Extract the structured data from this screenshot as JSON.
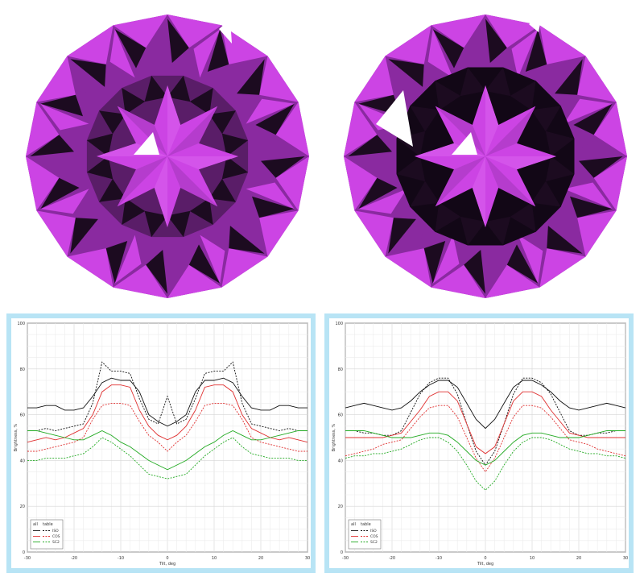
{
  "colors": {
    "gem_light": "#cc44e4",
    "gem_mid": "#8a2aa0",
    "gem_dark": "#1c0b20",
    "gem_darkest": "#120716",
    "panel_border": "#b8e4f5",
    "series_black": "#111111",
    "series_red": "#e03030",
    "series_green": "#22aa22",
    "grid": "#d6d6d6"
  },
  "gems": [
    {
      "icon": "diamond-render-left-icon"
    },
    {
      "icon": "diamond-render-right-icon"
    }
  ],
  "legend_labels": {
    "header_a": "all",
    "header_b": "table",
    "iso": "ISO",
    "cos": "COS",
    "sc2": "SC2"
  },
  "chart_data": [
    {
      "type": "line",
      "xlabel": "Tilt, deg",
      "ylabel": "Brightness, %",
      "xlim": [
        -30,
        30
      ],
      "ylim": [
        0,
        100
      ],
      "xticks": [
        -30,
        -20,
        -10,
        0,
        10,
        20,
        30
      ],
      "yticks": [
        0,
        20,
        40,
        60,
        80,
        100
      ],
      "grid": true,
      "legend": {
        "position": "bottom-left",
        "headers": [
          "all",
          "table"
        ],
        "entries": [
          "ISO",
          "COS",
          "SC2"
        ]
      },
      "x": [
        -30,
        -28,
        -26,
        -24,
        -22,
        -20,
        -18,
        -16,
        -14,
        -12,
        -10,
        -8,
        -6,
        -4,
        -2,
        0,
        2,
        4,
        6,
        8,
        10,
        12,
        14,
        16,
        18,
        20,
        22,
        24,
        26,
        28,
        30
      ],
      "series": [
        {
          "name": "ISO",
          "style": "all",
          "color": "#111111",
          "values": [
            63,
            63,
            64,
            64,
            62,
            62,
            63,
            68,
            74,
            76,
            75,
            75,
            70,
            60,
            57,
            55,
            57,
            60,
            70,
            75,
            75,
            76,
            74,
            68,
            63,
            62,
            62,
            64,
            64,
            63,
            63
          ]
        },
        {
          "name": "ISO",
          "style": "table",
          "color": "#111111",
          "values": [
            53,
            53,
            54,
            53,
            54,
            55,
            56,
            65,
            83,
            79,
            79,
            78,
            67,
            58,
            56,
            68,
            56,
            58,
            67,
            78,
            79,
            79,
            83,
            65,
            56,
            55,
            54,
            53,
            54,
            53,
            53
          ]
        },
        {
          "name": "COS",
          "style": "all",
          "color": "#e03030",
          "values": [
            48,
            49,
            50,
            49,
            50,
            52,
            54,
            60,
            70,
            73,
            73,
            72,
            62,
            55,
            51,
            49,
            51,
            55,
            62,
            72,
            73,
            73,
            70,
            60,
            54,
            52,
            50,
            49,
            50,
            49,
            48
          ]
        },
        {
          "name": "COS",
          "style": "table",
          "color": "#e03030",
          "values": [
            44,
            44,
            45,
            46,
            47,
            48,
            50,
            58,
            64,
            65,
            65,
            64,
            57,
            51,
            48,
            44,
            48,
            51,
            57,
            64,
            65,
            65,
            64,
            58,
            50,
            48,
            47,
            46,
            45,
            44,
            44
          ]
        },
        {
          "name": "SC2",
          "style": "all",
          "color": "#22aa22",
          "values": [
            53,
            53,
            52,
            51,
            50,
            49,
            49,
            51,
            53,
            51,
            48,
            46,
            43,
            40,
            38,
            36,
            38,
            40,
            43,
            46,
            48,
            51,
            53,
            51,
            49,
            49,
            50,
            51,
            52,
            53,
            53
          ]
        },
        {
          "name": "SC2",
          "style": "table",
          "color": "#22aa22",
          "values": [
            40,
            40,
            41,
            41,
            41,
            42,
            43,
            46,
            50,
            48,
            45,
            42,
            38,
            34,
            33,
            32,
            33,
            34,
            38,
            42,
            45,
            48,
            50,
            46,
            43,
            42,
            41,
            41,
            41,
            40,
            40
          ]
        }
      ]
    },
    {
      "type": "line",
      "xlabel": "Tilt, deg",
      "ylabel": "Brightness, %",
      "xlim": [
        -30,
        30
      ],
      "ylim": [
        0,
        100
      ],
      "xticks": [
        -30,
        -20,
        -10,
        0,
        10,
        20,
        30
      ],
      "yticks": [
        0,
        20,
        40,
        60,
        80,
        100
      ],
      "grid": true,
      "legend": {
        "position": "bottom-left",
        "headers": [
          "all",
          "table"
        ],
        "entries": [
          "ISO",
          "COS",
          "SC2"
        ]
      },
      "x": [
        -30,
        -28,
        -26,
        -24,
        -22,
        -20,
        -18,
        -16,
        -14,
        -12,
        -10,
        -8,
        -6,
        -4,
        -2,
        0,
        2,
        4,
        6,
        8,
        10,
        12,
        14,
        16,
        18,
        20,
        22,
        24,
        26,
        28,
        30
      ],
      "series": [
        {
          "name": "ISO",
          "style": "all",
          "color": "#111111",
          "values": [
            63,
            64,
            65,
            64,
            63,
            62,
            63,
            66,
            70,
            73,
            75,
            75,
            72,
            65,
            58,
            54,
            58,
            65,
            72,
            75,
            75,
            73,
            70,
            66,
            63,
            62,
            63,
            64,
            65,
            64,
            63
          ]
        },
        {
          "name": "ISO",
          "style": "table",
          "color": "#111111",
          "values": [
            53,
            53,
            52,
            52,
            51,
            51,
            53,
            61,
            69,
            74,
            76,
            76,
            69,
            56,
            44,
            38,
            44,
            56,
            69,
            76,
            76,
            74,
            69,
            61,
            53,
            51,
            51,
            52,
            52,
            53,
            53
          ]
        },
        {
          "name": "COS",
          "style": "all",
          "color": "#e03030",
          "values": [
            50,
            50,
            50,
            50,
            50,
            51,
            52,
            57,
            62,
            68,
            70,
            70,
            66,
            56,
            46,
            43,
            46,
            56,
            66,
            70,
            70,
            68,
            62,
            57,
            52,
            51,
            50,
            50,
            50,
            50,
            50
          ]
        },
        {
          "name": "COS",
          "style": "table",
          "color": "#e03030",
          "values": [
            42,
            43,
            44,
            45,
            47,
            48,
            49,
            54,
            59,
            63,
            64,
            64,
            59,
            50,
            41,
            35,
            41,
            50,
            59,
            64,
            64,
            63,
            59,
            54,
            49,
            48,
            47,
            45,
            44,
            43,
            42
          ]
        },
        {
          "name": "SC2",
          "style": "all",
          "color": "#22aa22",
          "values": [
            53,
            53,
            53,
            52,
            51,
            50,
            50,
            50,
            51,
            52,
            52,
            51,
            48,
            44,
            40,
            38,
            40,
            44,
            48,
            51,
            52,
            52,
            51,
            50,
            50,
            50,
            51,
            52,
            53,
            53,
            53
          ]
        },
        {
          "name": "SC2",
          "style": "table",
          "color": "#22aa22",
          "values": [
            41,
            42,
            42,
            43,
            43,
            44,
            45,
            47,
            49,
            50,
            50,
            48,
            44,
            38,
            31,
            27,
            31,
            38,
            44,
            48,
            50,
            50,
            49,
            47,
            45,
            44,
            43,
            43,
            42,
            42,
            41
          ]
        }
      ]
    }
  ]
}
